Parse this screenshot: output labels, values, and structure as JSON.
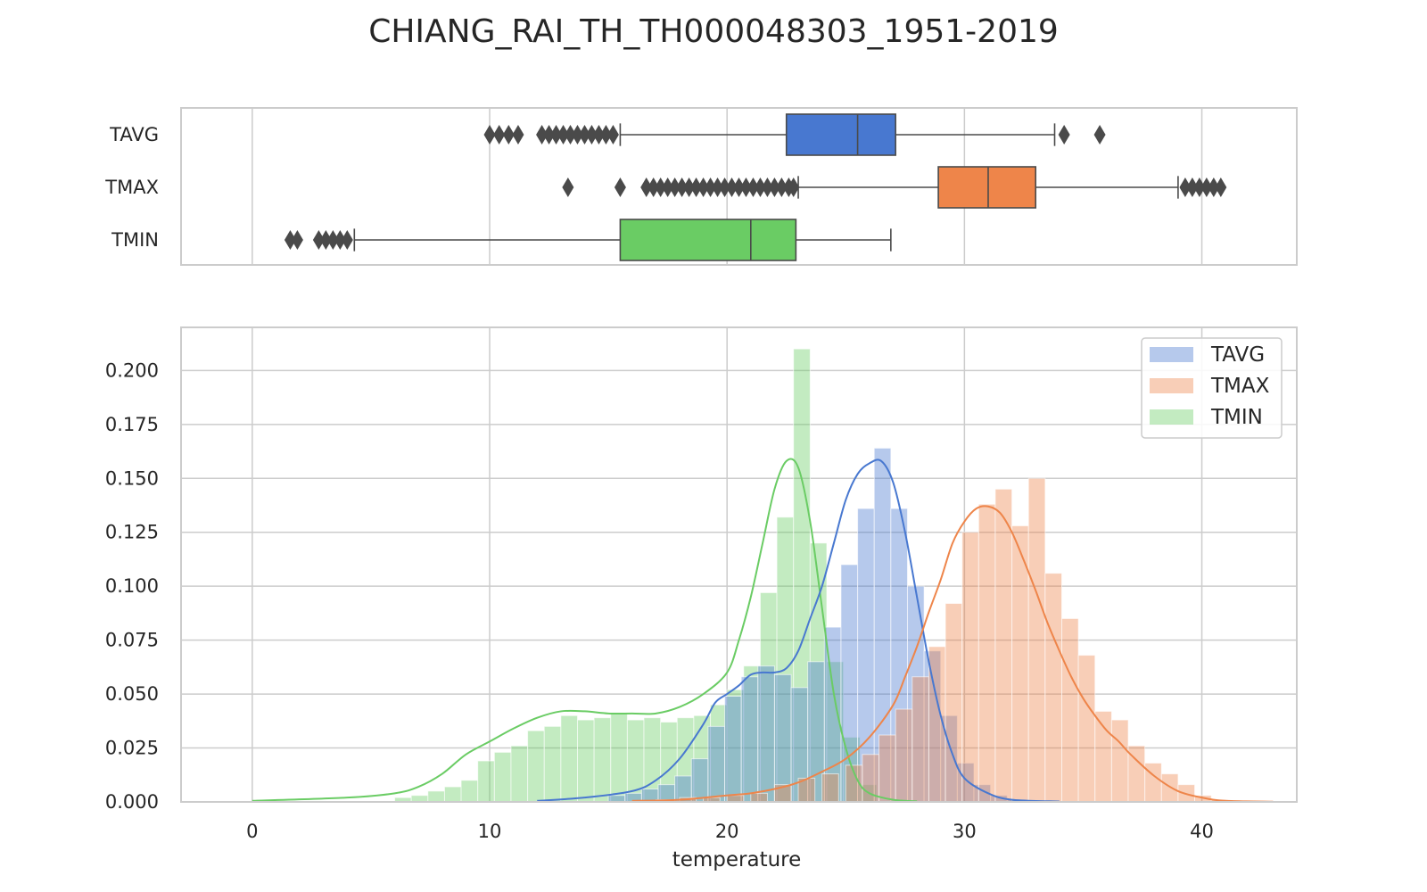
{
  "chart_data": {
    "type": "boxplot+histogram",
    "title": "CHIANG_RAI_TH_TH000048303_1951-2019",
    "xlabel": "temperature",
    "ylabel": "",
    "xlim": [
      -3,
      44
    ],
    "ylim": [
      0,
      0.22
    ],
    "grid": true,
    "legend_position": "top-right",
    "x_ticks": [
      0,
      10,
      20,
      30,
      40
    ],
    "x_tick_labels": [
      "0",
      "10",
      "20",
      "30",
      "40"
    ],
    "y_ticks": [
      0,
      0.025,
      0.05,
      0.075,
      0.1,
      0.125,
      0.15,
      0.175,
      0.2
    ],
    "y_tick_labels": [
      "0.000",
      "0.025",
      "0.050",
      "0.075",
      "0.100",
      "0.125",
      "0.150",
      "0.175",
      "0.200"
    ],
    "colors": {
      "TAVG": "#4878d0",
      "TMAX": "#ee854a",
      "TMIN": "#6acc64",
      "grid": "#cccccc",
      "text": "#262626",
      "box_edge": "#4a4a4a"
    },
    "boxplot": {
      "categories": [
        "TAVG",
        "TMAX",
        "TMIN"
      ],
      "series": [
        {
          "name": "TAVG",
          "q1": 22.5,
          "median": 25.5,
          "q3": 27.1,
          "whisker_low": 15.5,
          "whisker_high": 33.8,
          "fliers": [
            10.0,
            10.4,
            10.8,
            11.2,
            12.2,
            12.5,
            12.8,
            13.1,
            13.4,
            13.7,
            14.0,
            14.3,
            14.6,
            14.9,
            15.2,
            34.2,
            35.7
          ]
        },
        {
          "name": "TMAX",
          "q1": 28.9,
          "median": 31.0,
          "q3": 33.0,
          "whisker_low": 23.0,
          "whisker_high": 39.0,
          "fliers": [
            13.3,
            15.5,
            16.6,
            16.9,
            17.2,
            17.5,
            17.8,
            18.1,
            18.4,
            18.7,
            19.0,
            19.3,
            19.6,
            19.9,
            20.2,
            20.5,
            20.8,
            21.1,
            21.4,
            21.7,
            22.0,
            22.3,
            22.6,
            22.8,
            39.3,
            39.6,
            39.9,
            40.2,
            40.5,
            40.8
          ]
        },
        {
          "name": "TMIN",
          "q1": 15.5,
          "median": 21.0,
          "q3": 22.9,
          "whisker_low": 4.3,
          "whisker_high": 26.9,
          "fliers": [
            1.6,
            1.9,
            2.8,
            3.1,
            3.4,
            3.7,
            4.0
          ]
        }
      ]
    },
    "histogram": {
      "bin_width": 0.7,
      "series": [
        {
          "name": "TMIN",
          "bins": [
            [
              6.0,
              0.002
            ],
            [
              6.7,
              0.003
            ],
            [
              7.4,
              0.005
            ],
            [
              8.1,
              0.007
            ],
            [
              8.8,
              0.01
            ],
            [
              9.5,
              0.019
            ],
            [
              10.2,
              0.023
            ],
            [
              10.9,
              0.026
            ],
            [
              11.6,
              0.033
            ],
            [
              12.3,
              0.035
            ],
            [
              13.0,
              0.04
            ],
            [
              13.7,
              0.038
            ],
            [
              14.4,
              0.039
            ],
            [
              15.1,
              0.041
            ],
            [
              15.8,
              0.038
            ],
            [
              16.5,
              0.039
            ],
            [
              17.2,
              0.037
            ],
            [
              17.9,
              0.039
            ],
            [
              18.6,
              0.04
            ],
            [
              19.3,
              0.045
            ],
            [
              20.0,
              0.052
            ],
            [
              20.7,
              0.063
            ],
            [
              21.4,
              0.097
            ],
            [
              22.1,
              0.132
            ],
            [
              22.8,
              0.21
            ],
            [
              23.5,
              0.12
            ],
            [
              24.2,
              0.065
            ],
            [
              24.9,
              0.03
            ],
            [
              25.6,
              0.008
            ]
          ],
          "kde_x": [
            0,
            4,
            6,
            7,
            8,
            9,
            10,
            11,
            12,
            13,
            14,
            15,
            16,
            17,
            18,
            19,
            20,
            20.5,
            21,
            21.5,
            22,
            22.5,
            23,
            23.5,
            24,
            24.5,
            25,
            25.5,
            26,
            27,
            28
          ],
          "kde_y": [
            0.0005,
            0.002,
            0.004,
            0.007,
            0.013,
            0.022,
            0.028,
            0.034,
            0.039,
            0.042,
            0.042,
            0.041,
            0.041,
            0.041,
            0.044,
            0.05,
            0.06,
            0.075,
            0.095,
            0.12,
            0.145,
            0.158,
            0.155,
            0.13,
            0.09,
            0.05,
            0.025,
            0.01,
            0.004,
            0.001,
            0.0003
          ]
        },
        {
          "name": "TAVG",
          "bins": [
            [
              15.0,
              0.003
            ],
            [
              15.7,
              0.004
            ],
            [
              16.4,
              0.006
            ],
            [
              17.1,
              0.008
            ],
            [
              17.8,
              0.012
            ],
            [
              18.5,
              0.02
            ],
            [
              19.2,
              0.035
            ],
            [
              19.9,
              0.049
            ],
            [
              20.6,
              0.058
            ],
            [
              21.3,
              0.063
            ],
            [
              22.0,
              0.059
            ],
            [
              22.7,
              0.053
            ],
            [
              23.4,
              0.065
            ],
            [
              24.1,
              0.081
            ],
            [
              24.8,
              0.11
            ],
            [
              25.5,
              0.136
            ],
            [
              26.2,
              0.164
            ],
            [
              26.9,
              0.136
            ],
            [
              27.6,
              0.1
            ],
            [
              28.3,
              0.07
            ],
            [
              29.0,
              0.04
            ],
            [
              29.7,
              0.018
            ],
            [
              30.4,
              0.008
            ],
            [
              31.1,
              0.003
            ],
            [
              31.8,
              0.001
            ]
          ],
          "kde_x": [
            12,
            14,
            16,
            17,
            18,
            19,
            19.5,
            20,
            20.5,
            21,
            21.5,
            22,
            22.5,
            23,
            23.5,
            24,
            24.5,
            25,
            25.5,
            26,
            26.5,
            27,
            27.5,
            28,
            28.5,
            29,
            29.5,
            30,
            31,
            32,
            34
          ],
          "kde_y": [
            0.0005,
            0.002,
            0.005,
            0.01,
            0.02,
            0.036,
            0.046,
            0.05,
            0.054,
            0.059,
            0.06,
            0.06,
            0.062,
            0.07,
            0.085,
            0.1,
            0.12,
            0.14,
            0.152,
            0.157,
            0.158,
            0.148,
            0.125,
            0.095,
            0.065,
            0.04,
            0.022,
            0.011,
            0.004,
            0.001,
            0.0002
          ]
        },
        {
          "name": "TMAX",
          "bins": [
            [
              17.0,
              0.001
            ],
            [
              18.0,
              0.002
            ],
            [
              19.0,
              0.002
            ],
            [
              20.0,
              0.003
            ],
            [
              21.0,
              0.004
            ],
            [
              22.0,
              0.008
            ],
            [
              23.0,
              0.011
            ],
            [
              24.0,
              0.013
            ],
            [
              25.0,
              0.017
            ],
            [
              25.7,
              0.022
            ],
            [
              26.4,
              0.031
            ],
            [
              27.1,
              0.043
            ],
            [
              27.8,
              0.058
            ],
            [
              28.5,
              0.072
            ],
            [
              29.2,
              0.092
            ],
            [
              29.9,
              0.125
            ],
            [
              30.6,
              0.138
            ],
            [
              31.3,
              0.145
            ],
            [
              32.0,
              0.128
            ],
            [
              32.7,
              0.15
            ],
            [
              33.4,
              0.106
            ],
            [
              34.1,
              0.085
            ],
            [
              34.8,
              0.068
            ],
            [
              35.5,
              0.042
            ],
            [
              36.2,
              0.038
            ],
            [
              36.9,
              0.026
            ],
            [
              37.6,
              0.018
            ],
            [
              38.3,
              0.013
            ],
            [
              39.0,
              0.008
            ],
            [
              39.7,
              0.003
            ],
            [
              40.4,
              0.001
            ]
          ],
          "kde_x": [
            16,
            18,
            20,
            21,
            22,
            23,
            24,
            25,
            26,
            27,
            27.5,
            28,
            28.5,
            29,
            29.5,
            30,
            30.5,
            31,
            31.5,
            32,
            32.5,
            33,
            33.5,
            34,
            34.5,
            35,
            35.5,
            36,
            36.5,
            37,
            38,
            39,
            40,
            41,
            43
          ],
          "kde_y": [
            0.0005,
            0.001,
            0.003,
            0.004,
            0.006,
            0.009,
            0.014,
            0.02,
            0.03,
            0.045,
            0.058,
            0.072,
            0.088,
            0.103,
            0.12,
            0.13,
            0.136,
            0.137,
            0.134,
            0.125,
            0.112,
            0.098,
            0.083,
            0.07,
            0.058,
            0.048,
            0.04,
            0.033,
            0.028,
            0.022,
            0.012,
            0.005,
            0.002,
            0.0005,
            0.0001
          ]
        }
      ]
    },
    "legend": [
      "TAVG",
      "TMAX",
      "TMIN"
    ]
  }
}
